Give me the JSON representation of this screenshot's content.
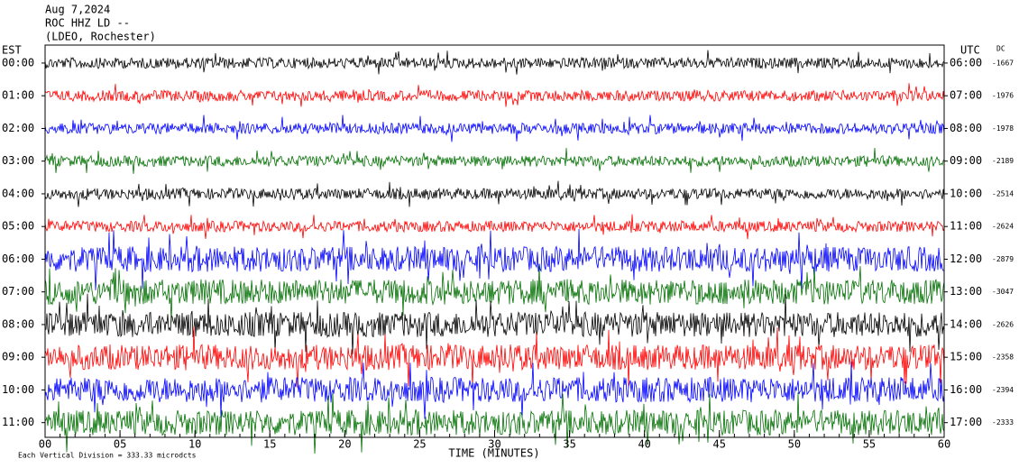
{
  "chart_data": {
    "type": "helicorder",
    "title_lines": [
      "Aug 7,2024",
      "ROC HHZ LD --",
      "(LDEO, Rochester)"
    ],
    "left_axis_label": "EST",
    "right_axis_label": "UTC",
    "dc_label": "DC",
    "xlabel": "TIME (MINUTES)",
    "footnote": "Each Vertical Division = 333.33 microdcts",
    "xlim": [
      0,
      60
    ],
    "xticks": [
      {
        "value": 0,
        "label": "00"
      },
      {
        "value": 5,
        "label": "05"
      },
      10,
      15,
      20,
      25,
      30,
      35,
      40,
      45,
      50,
      55,
      60
    ],
    "rows": [
      {
        "est": "00:00",
        "utc": "06:00",
        "dc": -1667,
        "color": "#000000"
      },
      {
        "est": "01:00",
        "utc": "07:00",
        "dc": -1976,
        "color": "#ff0000"
      },
      {
        "est": "02:00",
        "utc": "08:00",
        "dc": -1978,
        "color": "#0000ff"
      },
      {
        "est": "03:00",
        "utc": "09:00",
        "dc": -2189,
        "color": "#007000"
      },
      {
        "est": "04:00",
        "utc": "10:00",
        "dc": -2514,
        "color": "#000000"
      },
      {
        "est": "05:00",
        "utc": "11:00",
        "dc": -2624,
        "color": "#ff0000"
      },
      {
        "est": "06:00",
        "utc": "12:00",
        "dc": -2879,
        "color": "#0000ff"
      },
      {
        "est": "07:00",
        "utc": "13:00",
        "dc": -3047,
        "color": "#007000"
      },
      {
        "est": "08:00",
        "utc": "14:00",
        "dc": -2626,
        "color": "#000000"
      },
      {
        "est": "09:00",
        "utc": "15:00",
        "dc": -2358,
        "color": "#ff0000"
      },
      {
        "est": "10:00",
        "utc": "16:00",
        "dc": -2394,
        "color": "#0000ff"
      },
      {
        "est": "11:00",
        "utc": "17:00",
        "dc": -2333,
        "color": "#007000"
      }
    ]
  }
}
